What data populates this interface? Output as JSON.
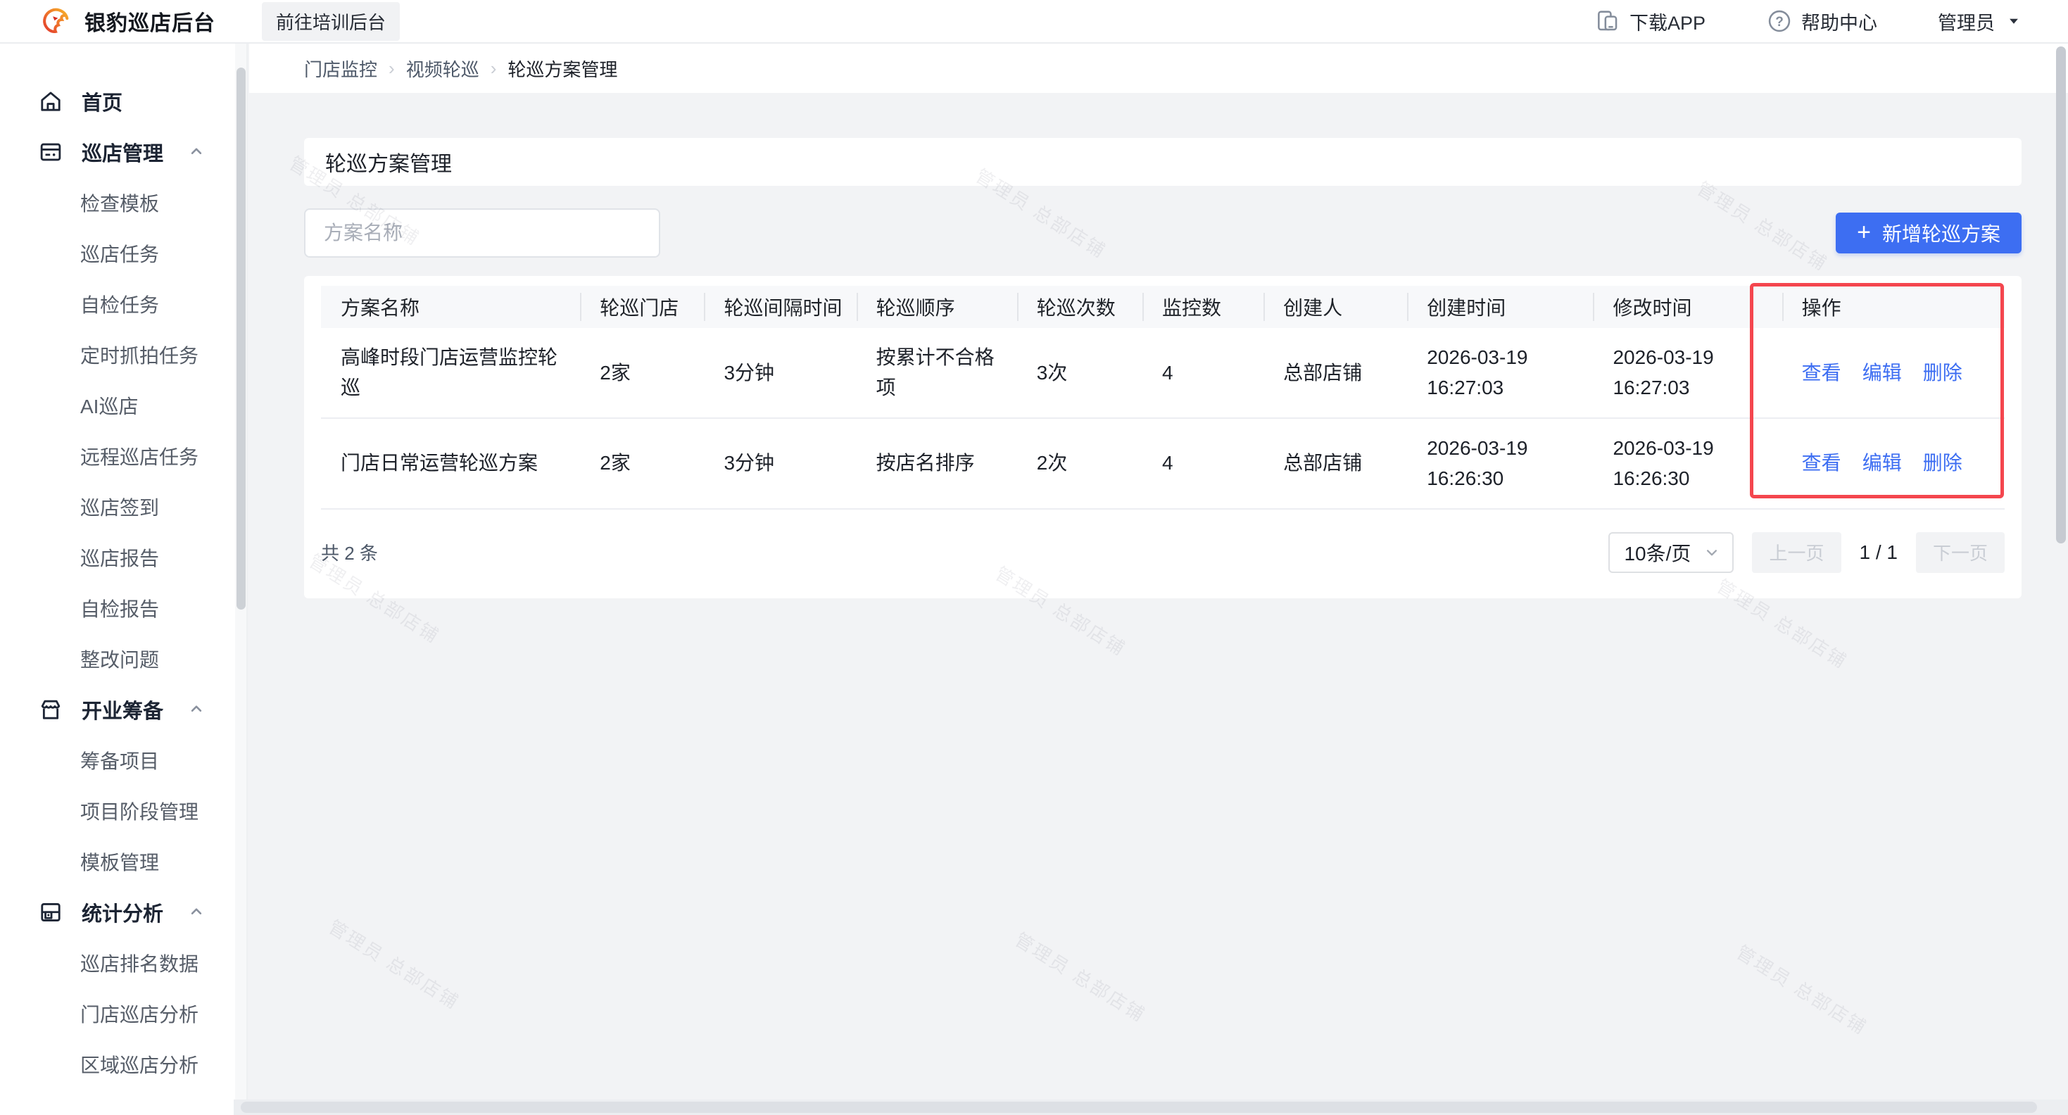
{
  "header": {
    "brand": "银豹巡店后台",
    "training_portal": "前往培训后台",
    "download_app": "下载APP",
    "help_center": "帮助中心",
    "user_name": "管理员"
  },
  "breadcrumb": {
    "separator": "›",
    "items": [
      "门店监控",
      "视频轮巡",
      "轮巡方案管理"
    ]
  },
  "page": {
    "title": "轮巡方案管理"
  },
  "toolbar": {
    "search_placeholder": "方案名称",
    "plus": "+",
    "add_button": "新增轮巡方案"
  },
  "sidebar": {
    "menu": [
      {
        "label": "首页",
        "icon": "home-icon",
        "expanded": false,
        "children": []
      },
      {
        "label": "巡店管理",
        "icon": "patrol-management-icon",
        "expanded": true,
        "children": [
          "检查模板",
          "巡店任务",
          "自检任务",
          "定时抓拍任务",
          "AI巡店",
          "远程巡店任务",
          "巡店签到",
          "巡店报告",
          "自检报告",
          "整改问题"
        ]
      },
      {
        "label": "开业筹备",
        "icon": "store-opening-icon",
        "expanded": true,
        "children": [
          "筹备项目",
          "项目阶段管理",
          "模板管理"
        ]
      },
      {
        "label": "统计分析",
        "icon": "statistics-icon",
        "expanded": true,
        "children": [
          "巡店排名数据",
          "门店巡店分析",
          "区域巡店分析"
        ]
      }
    ]
  },
  "table": {
    "columns": [
      "方案名称",
      "轮巡门店",
      "轮巡间隔时间",
      "轮巡顺序",
      "轮巡次数",
      "监控数",
      "创建人",
      "创建时间",
      "修改时间",
      "操作"
    ],
    "rows": [
      {
        "name": "高峰时段门店运营监控轮巡",
        "stores": "2家",
        "interval": "3分钟",
        "order": "按累计不合格项",
        "times": "3次",
        "monitors": "4",
        "creator": "总部店铺",
        "created": "2026-03-19 16:27:03",
        "modified": "2026-03-19 16:27:03",
        "actions": [
          "查看",
          "编辑",
          "删除"
        ]
      },
      {
        "name": "门店日常运营轮巡方案",
        "stores": "2家",
        "interval": "3分钟",
        "order": "按店名排序",
        "times": "2次",
        "monitors": "4",
        "creator": "总部店铺",
        "created": "2026-03-19 16:26:30",
        "modified": "2026-03-19 16:26:30",
        "actions": [
          "查看",
          "编辑",
          "删除"
        ]
      }
    ]
  },
  "pagination": {
    "total": "共 2 条",
    "page_size": "10条/页",
    "prev": "上一页",
    "current": "1 / 1",
    "next": "下一页"
  },
  "watermark": {
    "text": "管理员 总部店铺"
  },
  "colors": {
    "accent": "#3D6EF2",
    "annotation_red": "#F4464E",
    "page_bg": "#F2F3F5",
    "table_header_bg": "#F7F8FA"
  }
}
